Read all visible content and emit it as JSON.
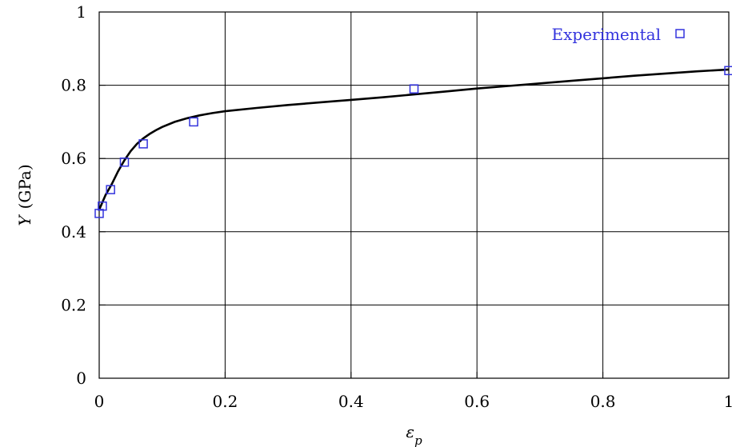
{
  "chart_data": {
    "type": "scatter",
    "title": "",
    "xlabel": "ε",
    "xlabel_subscript": "p",
    "ylabel_symbol": "Y",
    "ylabel_unit": "(GPa)",
    "xlim": [
      0,
      1
    ],
    "ylim": [
      0,
      1
    ],
    "xticks": [
      "0",
      "0.2",
      "0.4",
      "0.6",
      "0.8",
      "1"
    ],
    "yticks": [
      "0",
      "0.2",
      "0.4",
      "0.6",
      "0.8",
      "1"
    ],
    "grid": true,
    "legend_position": "top-right",
    "series": [
      {
        "name": "Experimental",
        "kind": "scatter",
        "marker": "open-square",
        "color": "#3333dd",
        "x": [
          0,
          0.005,
          0.018,
          0.04,
          0.07,
          0.15,
          0.5,
          1.0
        ],
        "y": [
          0.45,
          0.47,
          0.515,
          0.59,
          0.64,
          0.7,
          0.79,
          0.84
        ]
      },
      {
        "kind": "line",
        "color": "#000000",
        "x": [
          0,
          0.005,
          0.01,
          0.02,
          0.03,
          0.04,
          0.05,
          0.06,
          0.07,
          0.08,
          0.09,
          0.1,
          0.12,
          0.14,
          0.16,
          0.18,
          0.2,
          0.25,
          0.3,
          0.35,
          0.4,
          0.45,
          0.5,
          0.55,
          0.6,
          0.65,
          0.7,
          0.75,
          0.8,
          0.85,
          0.9,
          0.95,
          1.0
        ],
        "y": [
          0.46,
          0.48,
          0.5,
          0.53,
          0.565,
          0.595,
          0.62,
          0.64,
          0.655,
          0.667,
          0.677,
          0.686,
          0.7,
          0.71,
          0.718,
          0.724,
          0.729,
          0.738,
          0.746,
          0.753,
          0.76,
          0.767,
          0.775,
          0.783,
          0.791,
          0.798,
          0.805,
          0.812,
          0.819,
          0.826,
          0.832,
          0.838,
          0.843
        ]
      }
    ]
  }
}
